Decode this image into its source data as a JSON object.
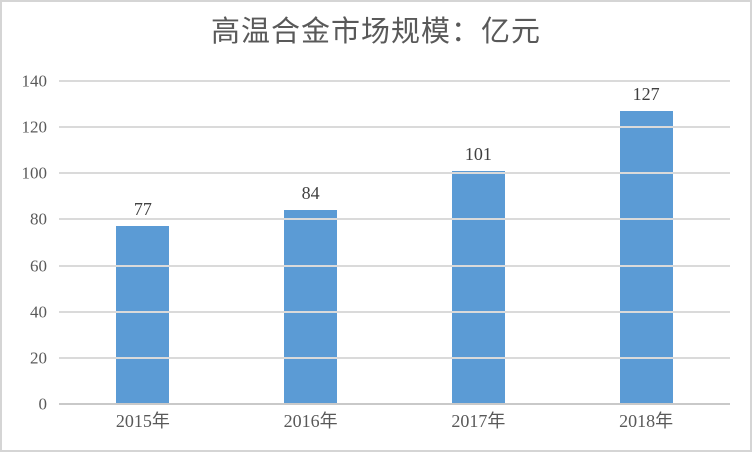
{
  "chart_data": {
    "type": "bar",
    "title": "高温合金市场规模：亿元",
    "categories": [
      "2015年",
      "2016年",
      "2017年",
      "2018年"
    ],
    "values": [
      77,
      84,
      101,
      127
    ],
    "xlabel": "",
    "ylabel": "",
    "ylim": [
      0,
      140
    ],
    "yticks": [
      0,
      20,
      40,
      60,
      80,
      100,
      120,
      140
    ],
    "grid": true,
    "legend_position": "none",
    "data_labels": true,
    "colors": {
      "bar": "#5B9BD5",
      "gridline": "#dadada",
      "axis_line": "#c9c9c9",
      "tick_text": "#595959",
      "value_label_text": "#404040",
      "title_text": "#595959",
      "frame_border": "#d5d5d5",
      "background": "#ffffff"
    }
  }
}
